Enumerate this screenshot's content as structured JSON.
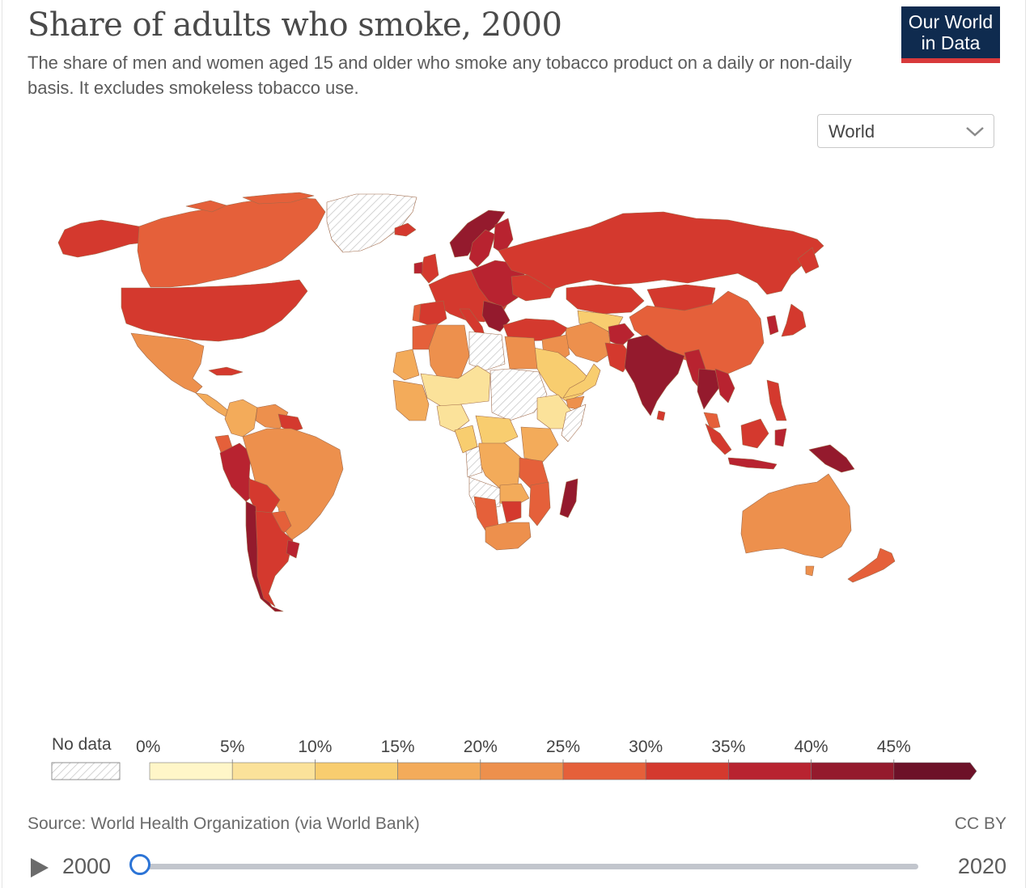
{
  "header": {
    "title": "Share of adults who smoke, 2000",
    "subtitle": "The share of men and women aged 15 and older who smoke any tobacco product on a daily or non-daily basis. It excludes smokeless tobacco use.",
    "logo_line1": "Our World",
    "logo_line2": "in Data"
  },
  "region_selector": {
    "value": "World"
  },
  "legend": {
    "no_data_label": "No data",
    "bins": [
      "0%",
      "5%",
      "10%",
      "15%",
      "20%",
      "25%",
      "30%",
      "35%",
      "40%",
      "45%"
    ],
    "colors": [
      "#fff6c8",
      "#fbe29a",
      "#f8cd6f",
      "#f3ab5a",
      "#ed904d",
      "#e5603a",
      "#d4392e",
      "#b82330",
      "#941a2d",
      "#6d1128"
    ],
    "no_data_color": "#dcdcdc"
  },
  "footer": {
    "source": "Source: World Health Organization (via World Bank)",
    "license": "CC BY"
  },
  "timeline": {
    "start_year": "2000",
    "end_year": "2020",
    "selected_year": 2000
  }
}
